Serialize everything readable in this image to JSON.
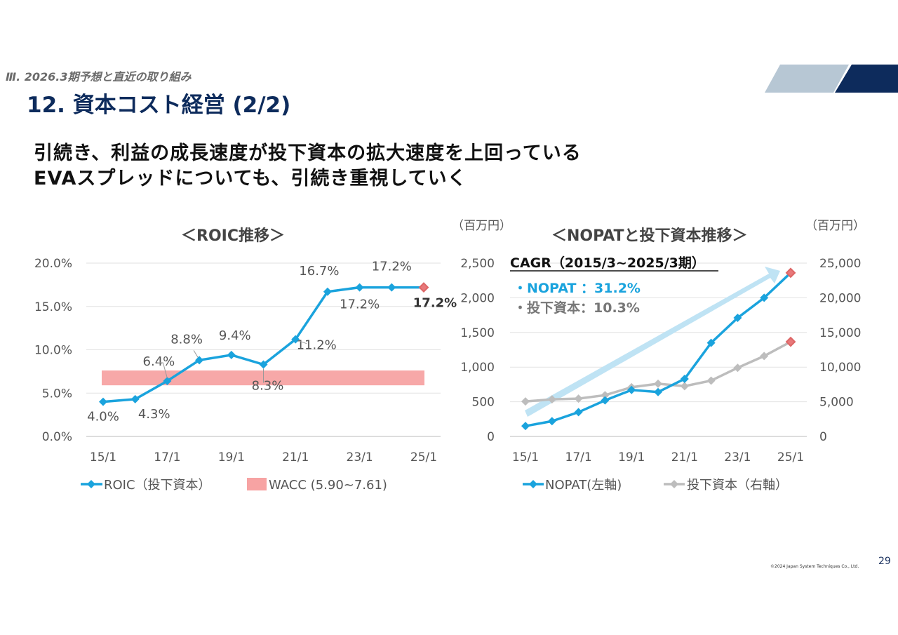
{
  "slide": {
    "section": "Ⅲ. 2026.3期予想と直近の取り組み",
    "title": "12. 資本コスト経営 (2/2)",
    "headline_line1": "引続き、利益の成長速度が投下資本の拡大速度を上回っている",
    "headline_line2": "EVAスプレッドについても、引続き重視していく",
    "page_number": "29",
    "copyright": "©2024 Japan System Techniques Co., Ltd."
  },
  "colors": {
    "navy": "#0d2b5c",
    "roic_line": "#1aa3dd",
    "wacc_band": "#f7a3a3",
    "invest_line": "#bdbdbd",
    "forecast_marker": "#e8787a",
    "cagr_arrow": "#bfe3f4"
  },
  "chart_data": [
    {
      "type": "line",
      "title": "＜ROIC推移＞",
      "x_ticks": [
        "15/1",
        "17/1",
        "19/1",
        "21/1",
        "23/1",
        "25/1"
      ],
      "y_ticks": [
        "0.0%",
        "5.0%",
        "10.0%",
        "15.0%",
        "20.0%"
      ],
      "ylim": [
        0,
        20
      ],
      "series": [
        {
          "name": "ROIC（投下資本）",
          "x": [
            0,
            1,
            2,
            3,
            4,
            5,
            6,
            7,
            8,
            9,
            10
          ],
          "values": [
            4.0,
            4.3,
            6.4,
            8.8,
            9.4,
            8.3,
            11.2,
            16.7,
            17.2,
            17.2,
            17.2
          ],
          "labels": [
            "4.0%",
            "4.3%",
            "6.4%",
            "8.8%",
            "9.4%",
            "8.3%",
            "11.2%",
            "16.7%",
            "17.2%",
            "17.2%",
            "17.2%"
          ],
          "forecast_last": true
        }
      ],
      "band": {
        "name": "WACC (5.90~7.61)",
        "low": 5.9,
        "high": 7.61
      },
      "grid": true,
      "legend": "bottom"
    },
    {
      "type": "line",
      "title": "＜NOPATと投下資本推移＞",
      "unit_left": "（百万円）",
      "unit_right": "（百万円）",
      "x_ticks": [
        "15/1",
        "17/1",
        "19/1",
        "21/1",
        "23/1",
        "25/1"
      ],
      "y_left_ticks": [
        "0",
        "500",
        "1,000",
        "1,500",
        "2,000",
        "2,500"
      ],
      "y_right_ticks": [
        "0",
        "5,000",
        "10,000",
        "15,000",
        "20,000",
        "25,000"
      ],
      "ylim_left": [
        0,
        2500
      ],
      "ylim_right": [
        0,
        25000
      ],
      "series": [
        {
          "name": "NOPAT(左軸)",
          "axis": "left",
          "x": [
            0,
            1,
            2,
            3,
            4,
            5,
            6,
            7,
            8,
            9,
            10
          ],
          "values": [
            150,
            220,
            350,
            520,
            670,
            640,
            830,
            1350,
            1710,
            2000,
            2360
          ],
          "forecast_last": true
        },
        {
          "name": "投下資本（右軸）",
          "axis": "right",
          "x": [
            0,
            1,
            2,
            3,
            4,
            5,
            6,
            7,
            8,
            9,
            10
          ],
          "values": [
            5050,
            5350,
            5450,
            5950,
            7100,
            7600,
            7250,
            8050,
            9900,
            11600,
            13650
          ],
          "forecast_last": true
        }
      ],
      "cagr": {
        "title": "CAGR（2015/3~2025/3期）",
        "nopat": "・NOPAT ：31.2%",
        "invest": "・投下資本：10.3%"
      },
      "grid": true,
      "legend": "bottom"
    }
  ]
}
